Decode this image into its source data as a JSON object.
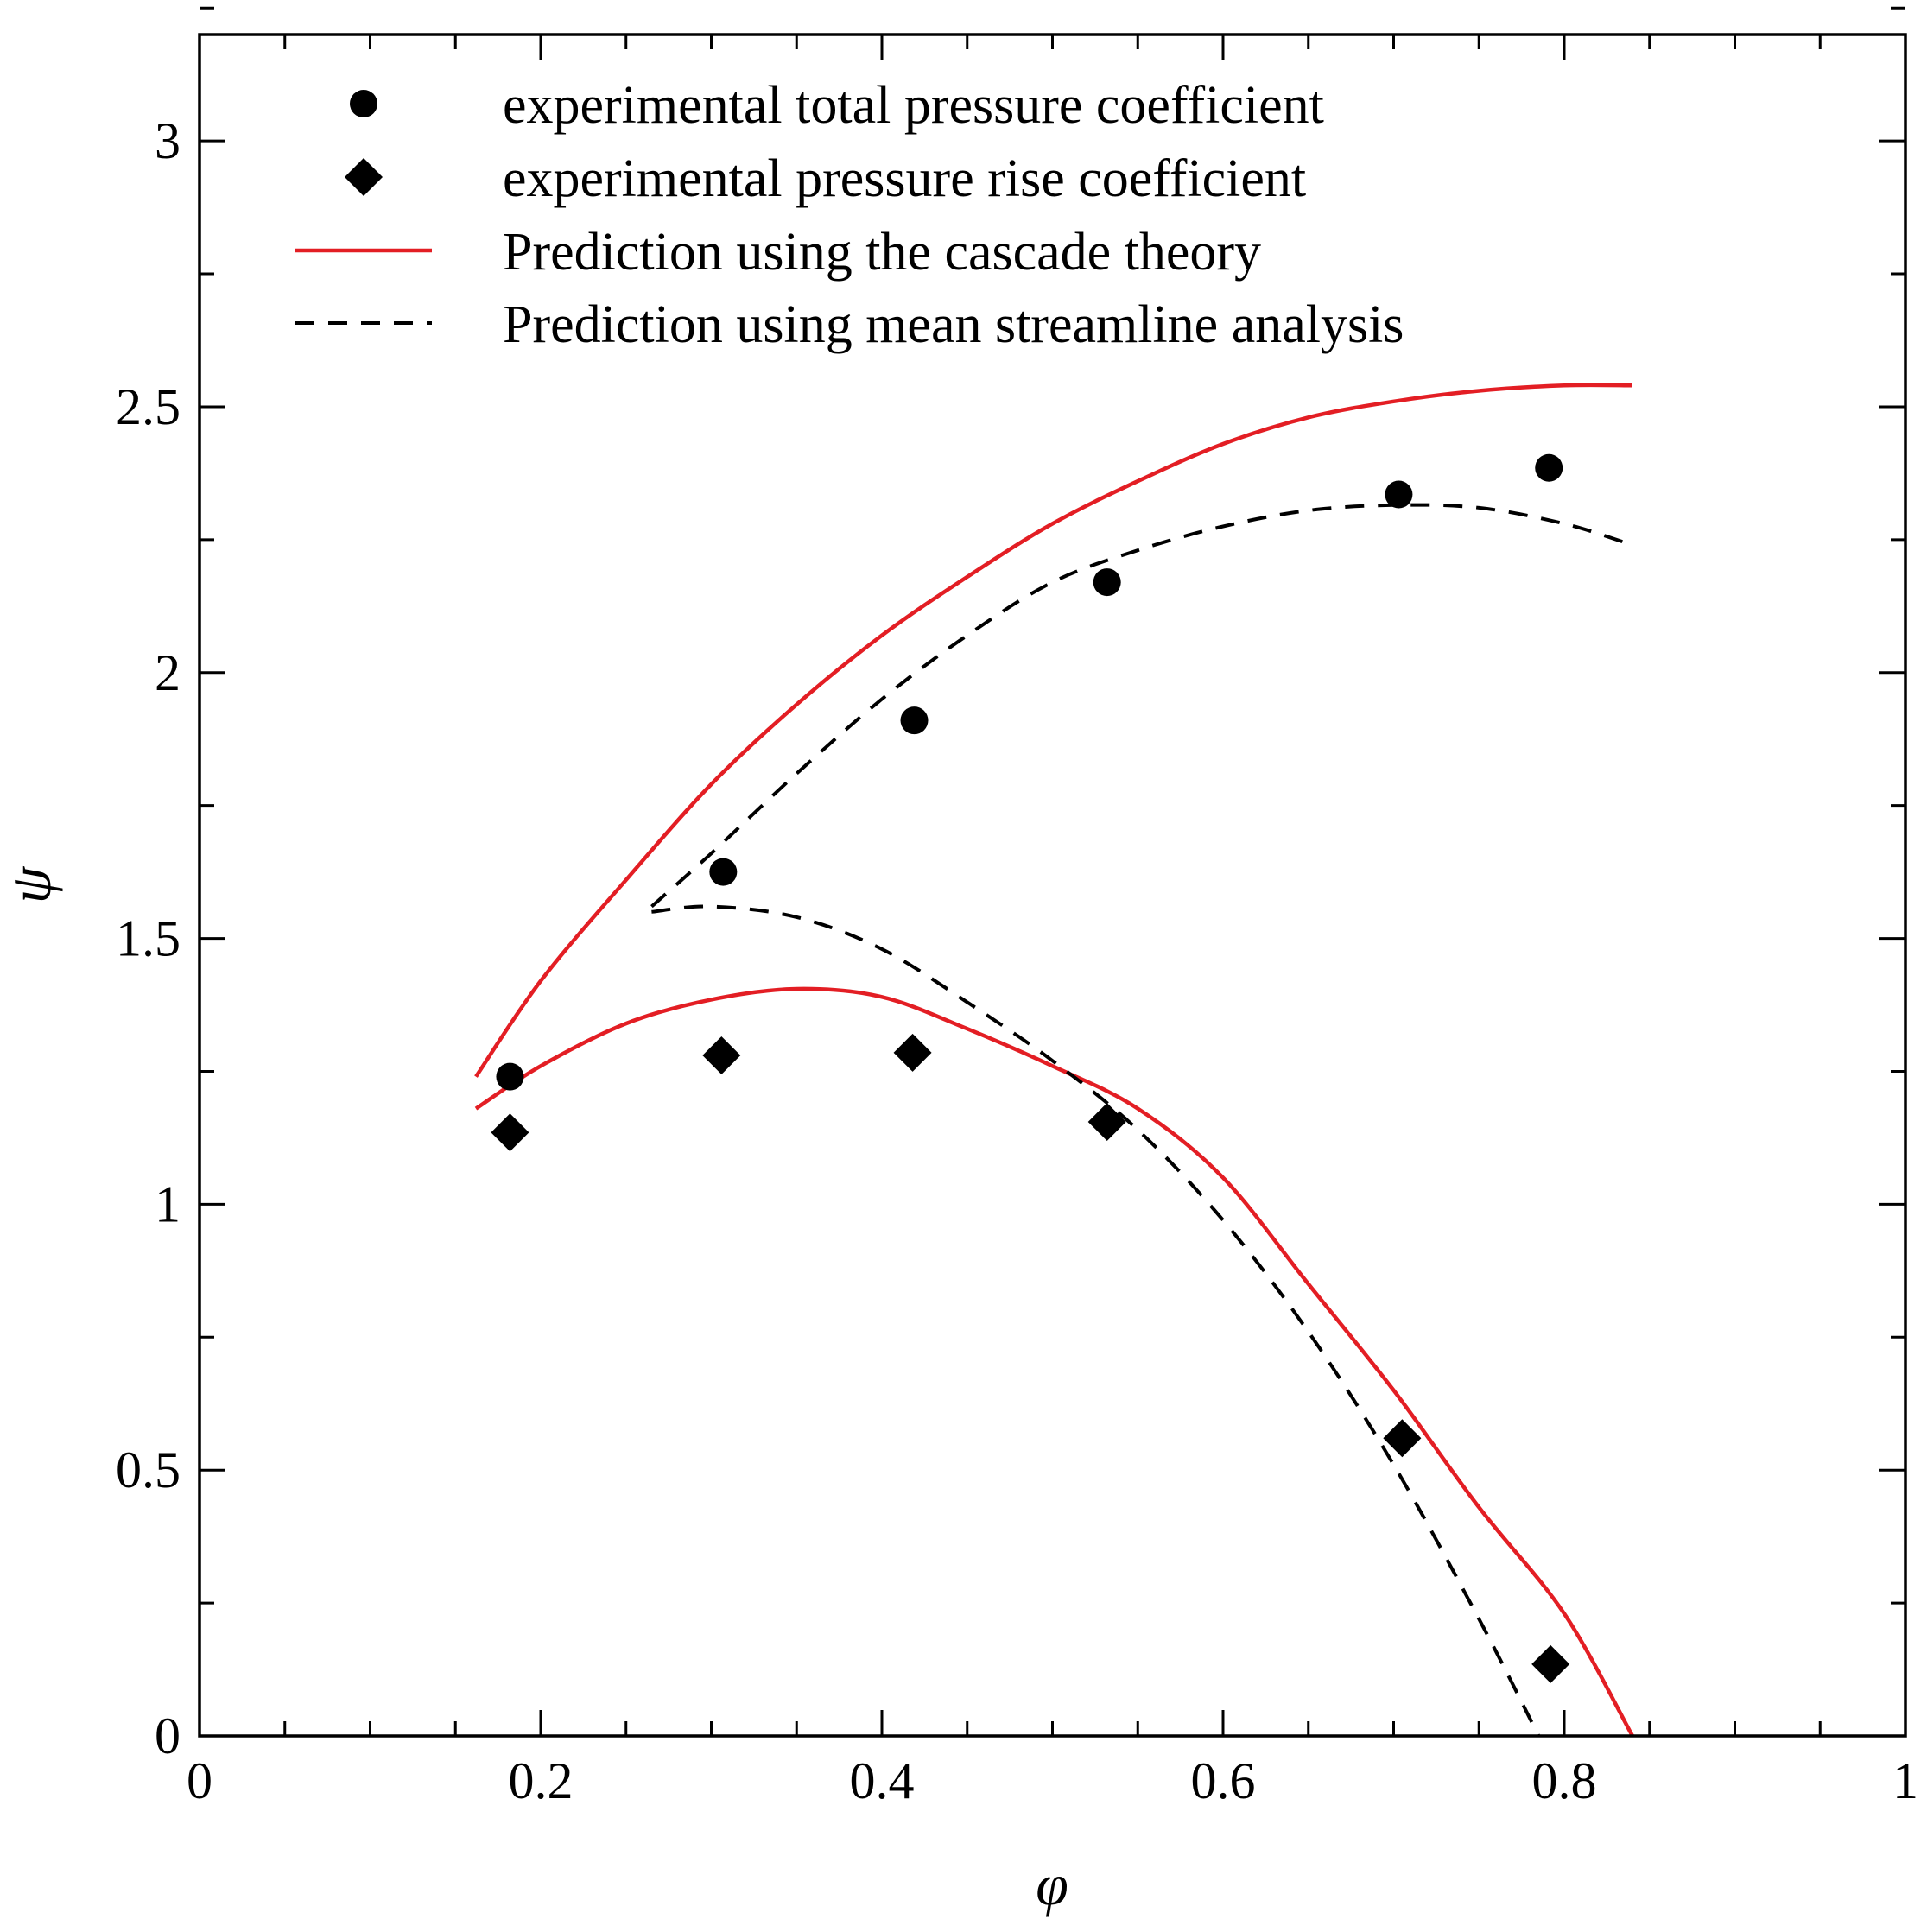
{
  "chart_data": {
    "type": "scatter",
    "title": "",
    "xlabel": "φ",
    "ylabel": "ψ",
    "xlim": [
      0,
      1
    ],
    "ylim": [
      0,
      3.2
    ],
    "x_ticks": [
      0,
      0.2,
      0.4,
      0.6,
      0.8,
      1
    ],
    "x_tick_labels": [
      "0",
      "0.2",
      "0.4",
      "0.6",
      "0.8",
      "1"
    ],
    "x_minor_step": 0.05,
    "y_ticks": [
      0,
      0.5,
      1,
      1.5,
      2,
      2.5,
      3
    ],
    "y_tick_labels": [
      "0",
      "0.5",
      "1",
      "1.5",
      "2",
      "2.5",
      "3"
    ],
    "y_minor_step": 0.25,
    "grid": false,
    "legend_position": "top-left",
    "series": [
      {
        "name": "experimental total pressure coefficient",
        "kind": "markers",
        "marker": "circle",
        "color": "#000000",
        "x": [
          0.182,
          0.307,
          0.419,
          0.532,
          0.703,
          0.791
        ],
        "y": [
          1.24,
          1.625,
          1.91,
          2.17,
          2.335,
          2.385
        ]
      },
      {
        "name": "experimental pressure rise coefficient",
        "kind": "markers",
        "marker": "diamond",
        "color": "#000000",
        "x": [
          0.182,
          0.306,
          0.418,
          0.532,
          0.705,
          0.792
        ],
        "y": [
          1.135,
          1.28,
          1.285,
          1.155,
          0.56,
          0.135
        ]
      },
      {
        "name": "Prediction using the cascade theory",
        "kind": "line",
        "dash": "solid",
        "color": "#e31e24",
        "curves": [
          {
            "x": [
              0.162,
              0.2,
              0.25,
              0.3,
              0.35,
              0.4,
              0.45,
              0.5,
              0.55,
              0.6,
              0.65,
              0.7,
              0.75,
              0.8,
              0.84
            ],
            "y": [
              1.24,
              1.42,
              1.61,
              1.79,
              1.94,
              2.07,
              2.18,
              2.28,
              2.36,
              2.43,
              2.48,
              2.51,
              2.53,
              2.54,
              2.54
            ]
          },
          {
            "x": [
              0.162,
              0.2,
              0.25,
              0.3,
              0.35,
              0.4,
              0.45,
              0.5,
              0.55,
              0.6,
              0.65,
              0.7,
              0.75,
              0.8,
              0.84
            ],
            "y": [
              1.18,
              1.26,
              1.34,
              1.385,
              1.405,
              1.39,
              1.33,
              1.26,
              1.18,
              1.05,
              0.85,
              0.65,
              0.43,
              0.23,
              0.0
            ]
          }
        ]
      },
      {
        "name": "Prediction using mean streamline analysis",
        "kind": "line",
        "dash": "dashed",
        "color": "#000000",
        "curves": [
          {
            "x": [
              0.265,
              0.3,
              0.35,
              0.4,
              0.45,
              0.5,
              0.55,
              0.6,
              0.65,
              0.7,
              0.75,
              0.8,
              0.84
            ],
            "y": [
              1.56,
              1.66,
              1.81,
              1.95,
              2.07,
              2.17,
              2.23,
              2.275,
              2.305,
              2.315,
              2.31,
              2.28,
              2.24
            ]
          },
          {
            "x": [
              0.265,
              0.3,
              0.35,
              0.4,
              0.45,
              0.5,
              0.55,
              0.6,
              0.65,
              0.7,
              0.75,
              0.785
            ],
            "y": [
              1.55,
              1.56,
              1.54,
              1.48,
              1.38,
              1.27,
              1.14,
              0.97,
              0.76,
              0.51,
              0.22,
              0.0
            ]
          }
        ]
      }
    ]
  }
}
